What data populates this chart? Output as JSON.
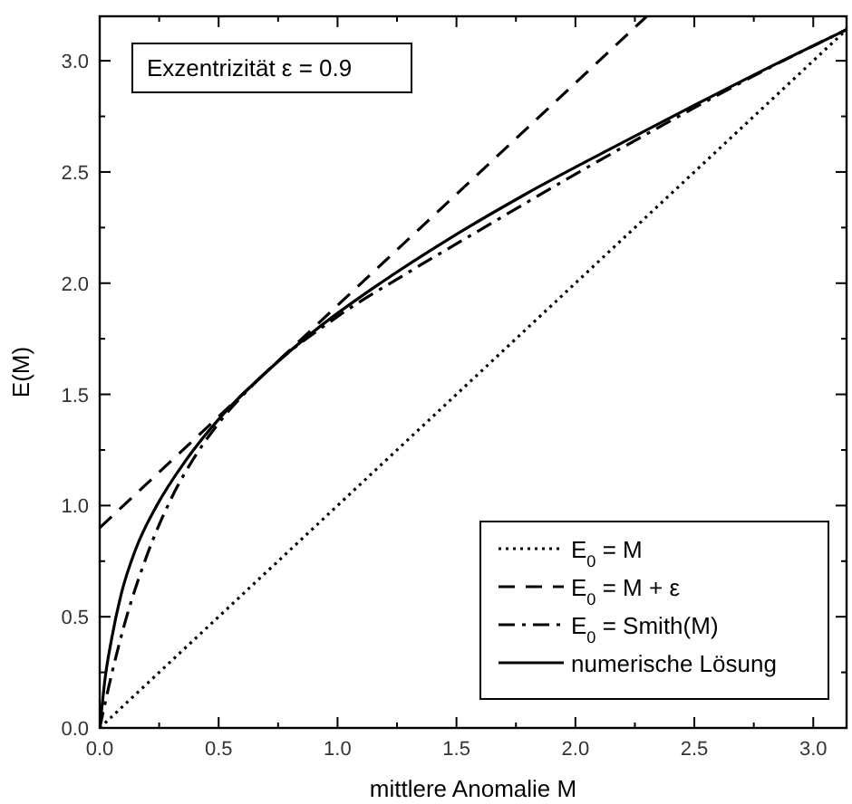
{
  "chart_data": {
    "type": "line",
    "xlabel": "mittlere Anomalie M",
    "ylabel": "E(M)",
    "annotations": [
      "Exzentrizität ε = 0.9"
    ],
    "xlim": [
      0,
      3.14
    ],
    "ylim": [
      0,
      3.2
    ],
    "xticks": [
      {
        "value": 0,
        "label": "0.0"
      },
      {
        "value": 0.25,
        "label": null
      },
      {
        "value": 0.5,
        "label": "0.5"
      },
      {
        "value": 0.75,
        "label": null
      },
      {
        "value": 1,
        "label": "1.0"
      },
      {
        "value": 1.25,
        "label": null
      },
      {
        "value": 1.5,
        "label": "1.5"
      },
      {
        "value": 1.75,
        "label": null
      },
      {
        "value": 2,
        "label": "2.0"
      },
      {
        "value": 2.25,
        "label": null
      },
      {
        "value": 2.5,
        "label": "2.5"
      },
      {
        "value": 2.75,
        "label": null
      },
      {
        "value": 3,
        "label": "3.0"
      }
    ],
    "yticks": [
      {
        "value": 0,
        "label": "0.0"
      },
      {
        "value": 0.25,
        "label": null
      },
      {
        "value": 0.5,
        "label": "0.5"
      },
      {
        "value": 0.75,
        "label": null
      },
      {
        "value": 1,
        "label": "1.0"
      },
      {
        "value": 1.25,
        "label": null
      },
      {
        "value": 1.5,
        "label": "1.5"
      },
      {
        "value": 1.75,
        "label": null
      },
      {
        "value": 2,
        "label": "2.0"
      },
      {
        "value": 2.25,
        "label": null
      },
      {
        "value": 2.5,
        "label": "2.5"
      },
      {
        "value": 2.75,
        "label": null
      },
      {
        "value": 3,
        "label": "3.0"
      }
    ],
    "grid": false,
    "legend": "bottom right",
    "series": [
      {
        "name": "E$_{0}$ = M",
        "color": "#000000",
        "line_style": "dotted",
        "x": [
          0,
          3.14
        ],
        "values": [
          0,
          3.14
        ]
      },
      {
        "name": "E$_{0}$ = M + ε",
        "color": "#000000",
        "line_style": "dashed",
        "x": [
          0,
          2.3
        ],
        "values": [
          0.9,
          3.2
        ]
      },
      {
        "name": "E$_{0}$ = Smith(M)",
        "color": "#000000",
        "line_style": "dashdot",
        "x": [
          0,
          0.05,
          0.1,
          0.2,
          0.3,
          0.4,
          0.5,
          0.7,
          1.0,
          1.3,
          1.6,
          2.0,
          2.4,
          2.8,
          3.14
        ],
        "values": [
          0,
          0.24,
          0.45,
          0.78,
          1.03,
          1.22,
          1.37,
          1.6,
          1.85,
          2.05,
          2.24,
          2.49,
          2.73,
          2.96,
          3.14
        ]
      },
      {
        "name": "numerische Lösung",
        "color": "#000000",
        "line_style": "solid",
        "x": [
          0,
          0.01,
          0.02,
          0.05,
          0.09,
          0.15,
          0.24,
          0.36,
          0.51,
          0.7,
          0.92,
          1.18,
          1.47,
          1.79,
          2.14,
          2.5,
          2.87,
          3.14
        ],
        "values": [
          0,
          0.1,
          0.2,
          0.4,
          0.6,
          0.8,
          1.0,
          1.2,
          1.4,
          1.6,
          1.8,
          2.0,
          2.2,
          2.4,
          2.6,
          2.8,
          3.0,
          3.14
        ]
      }
    ]
  }
}
